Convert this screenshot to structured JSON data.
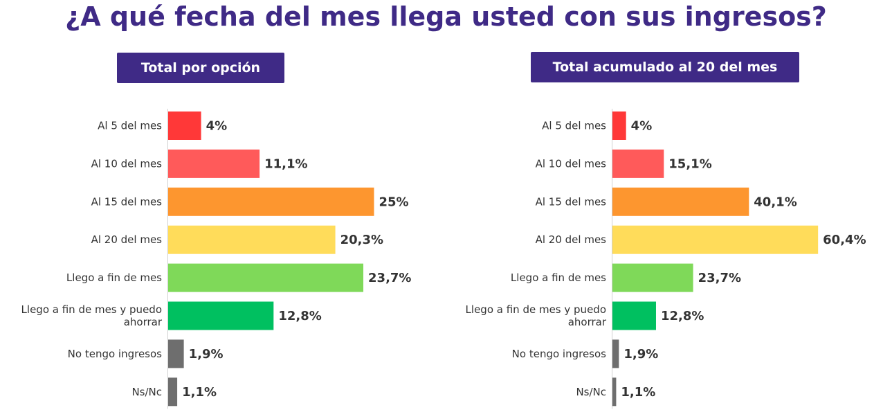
{
  "title": "¿A qué fecha del mes llega usted con sus ingresos?",
  "chart_data": [
    {
      "type": "bar",
      "orientation": "horizontal",
      "title": "Total por opción",
      "categories": [
        "Al 5 del mes",
        "Al 10 del mes",
        "Al 15 del mes",
        "Al 20 del mes",
        "Llego a fin de mes",
        "Llego a fin de mes y puedo ahorrar",
        "No tengo ingresos",
        "Ns/Nc"
      ],
      "category_lines": [
        [
          "Al 5 del mes"
        ],
        [
          "Al 10 del mes"
        ],
        [
          "Al 15 del mes"
        ],
        [
          "Al 20 del mes"
        ],
        [
          "Llego a fin de mes"
        ],
        [
          "Llego a fin de mes y puedo",
          "ahorrar"
        ],
        [
          "No tengo ingresos"
        ],
        [
          "Ns/Nc"
        ]
      ],
      "values": [
        4,
        11.1,
        25,
        20.3,
        23.7,
        12.8,
        1.9,
        1.1
      ],
      "value_labels": [
        "4%",
        "11,1%",
        "25%",
        "20,3%",
        "23,7%",
        "12,8%",
        "1,9%",
        "1,1%"
      ],
      "colors": [
        "#ff3838",
        "#ff5a5a",
        "#fd962f",
        "#ffdc5a",
        "#7fd959",
        "#00c060",
        "#6e6e6e",
        "#6e6e6e"
      ],
      "unit": "%"
    },
    {
      "type": "bar",
      "orientation": "horizontal",
      "title": "Total acumulado al 20 del mes",
      "categories": [
        "Al 5 del mes",
        "Al 10 del mes",
        "Al 15 del mes",
        "Al 20 del mes",
        "Llego a fin de mes",
        "Llego a fin de mes y puedo ahorrar",
        "No tengo ingresos",
        "Ns/Nc"
      ],
      "category_lines": [
        [
          "Al 5 del mes"
        ],
        [
          "Al 10 del mes"
        ],
        [
          "Al 15 del mes"
        ],
        [
          "Al 20 del mes"
        ],
        [
          "Llego a fin de mes"
        ],
        [
          "Llego a fin de mes y puedo",
          "ahorrar"
        ],
        [
          "No tengo ingresos"
        ],
        [
          "Ns/Nc"
        ]
      ],
      "values": [
        4,
        15.1,
        40.1,
        60.4,
        23.7,
        12.8,
        1.9,
        1.1
      ],
      "value_labels": [
        "4%",
        "15,1%",
        "40,1%",
        "60,4%",
        "23,7%",
        "12,8%",
        "1,9%",
        "1,1%"
      ],
      "colors": [
        "#ff3838",
        "#ff5a5a",
        "#fd962f",
        "#ffdc5a",
        "#7fd959",
        "#00c060",
        "#6e6e6e",
        "#6e6e6e"
      ],
      "unit": "%"
    }
  ]
}
